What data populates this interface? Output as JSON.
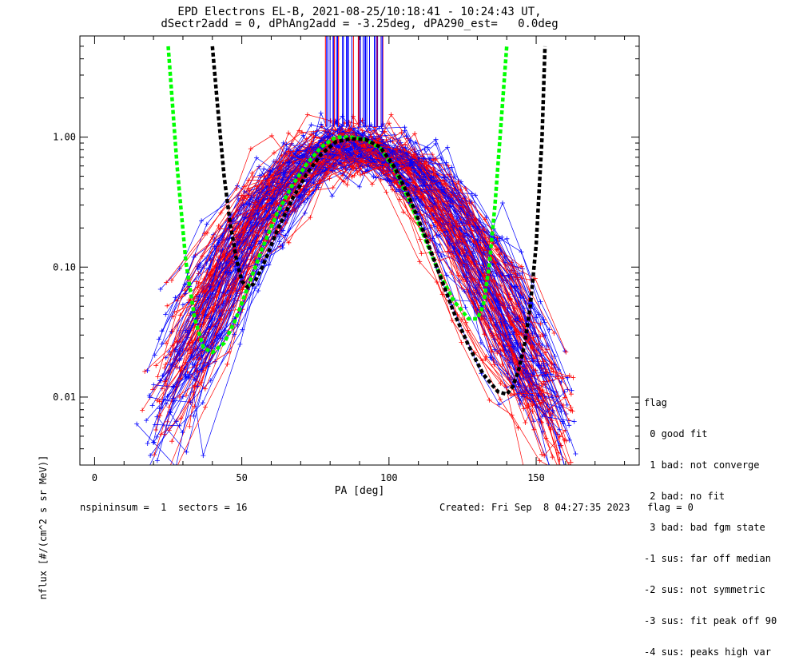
{
  "chart_data": {
    "type": "line",
    "title": "EPD Electrons EL-B, 2021-08-25/10:18:41 - 10:24:43 UT,",
    "subtitle": "dSectr2add = 0, dPhAng2add = -3.25deg, dPA290_est=   0.0deg",
    "xlabel": "PA [deg]",
    "ylabel": "nflux [#/(cm^2 s sr MeV)]",
    "xlim": [
      -5,
      185
    ],
    "ylim": [
      0.003,
      6.0
    ],
    "yscale": "log",
    "xticks": [
      "0",
      "50",
      "100",
      "150"
    ],
    "yticks": [
      "0.01",
      "0.10",
      "1.00"
    ],
    "grid": false,
    "legend_position": "right",
    "colors": {
      "red": "#ff0000",
      "blue": "#0000ff",
      "green": "#00ff00",
      "black": "#000000"
    },
    "series": [
      {
        "color": "green",
        "style": "dashed-thick",
        "x": [
          25,
          28,
          31,
          34,
          37,
          40,
          44,
          48,
          52,
          57,
          62,
          67,
          72,
          77,
          82,
          87,
          92,
          97,
          102,
          107,
          112,
          117,
          122,
          127,
          130,
          132,
          134,
          136,
          138,
          140
        ],
        "y": [
          5.0,
          0.6,
          0.11,
          0.04,
          0.024,
          0.022,
          0.026,
          0.04,
          0.07,
          0.14,
          0.26,
          0.42,
          0.62,
          0.84,
          1.0,
          1.0,
          0.96,
          0.82,
          0.56,
          0.32,
          0.17,
          0.09,
          0.055,
          0.04,
          0.04,
          0.05,
          0.1,
          0.3,
          1.2,
          5.0
        ]
      },
      {
        "color": "black",
        "style": "dashed-thick",
        "x": [
          40,
          42,
          44,
          46,
          48,
          50,
          52,
          54,
          57,
          62,
          67,
          72,
          77,
          82,
          87,
          92,
          97,
          102,
          107,
          112,
          117,
          122,
          127,
          132,
          137,
          140,
          142,
          144,
          146,
          148,
          150,
          152,
          153
        ],
        "y": [
          5.0,
          1.5,
          0.5,
          0.22,
          0.12,
          0.078,
          0.07,
          0.074,
          0.1,
          0.19,
          0.33,
          0.52,
          0.74,
          0.92,
          0.97,
          0.96,
          0.84,
          0.58,
          0.34,
          0.18,
          0.09,
          0.045,
          0.025,
          0.015,
          0.011,
          0.0105,
          0.012,
          0.016,
          0.025,
          0.05,
          0.15,
          1.0,
          5.0
        ]
      }
    ],
    "legend": {
      "title": "flag",
      "entries": [
        " 0 good fit",
        " 1 bad: not converge",
        " 2 bad: no fit",
        " 3 bad: bad fgm state",
        "-1 sus: far off median",
        "-2 sus: not symmetric",
        "-3 sus: fit peak off 90",
        "-4 sus: peaks high var"
      ]
    },
    "footer_left": "nspininsum =  1  sectors = 16",
    "footer_right": "Created: Fri Sep  8 04:27:35 2023   flag = 0"
  }
}
